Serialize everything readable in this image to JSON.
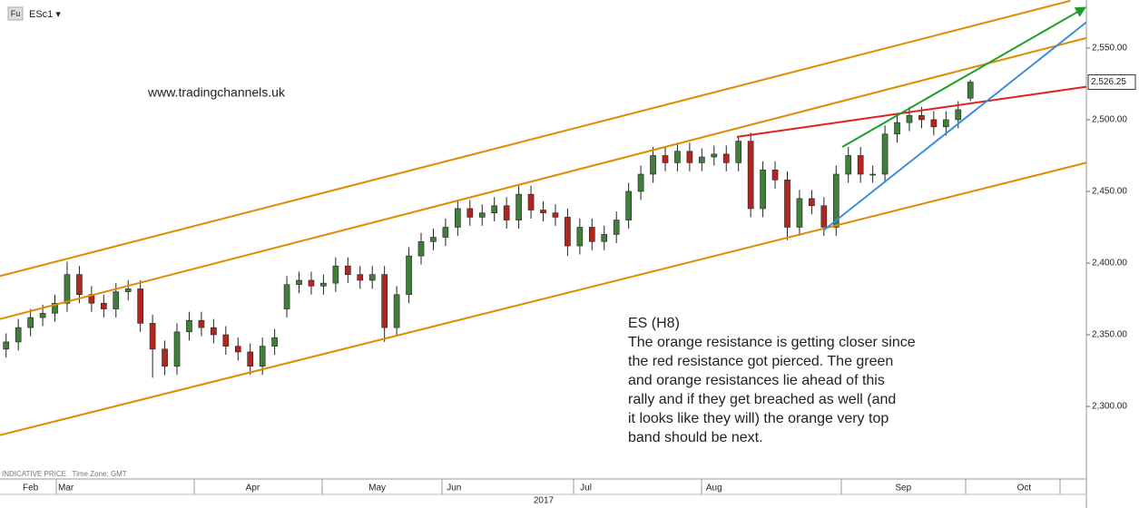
{
  "symbol_badge": "Fu",
  "symbol": "ESc1 ▾",
  "website": "www.tradingchannels.uk",
  "footer_note": "INDICATIVE PRICE   Time Zone: GMT",
  "annotation": [
    "ES (H8)",
    "The orange resistance is getting closer since",
    "the red resistance got pierced. The green",
    "and orange resistances lie ahead of this",
    "rally and if they get breached as well (and",
    "it looks like they will) the orange very top",
    "band should be next."
  ],
  "chart_data": {
    "type": "candlestick",
    "year_label": "2017",
    "xlim": [
      -0.5,
      88.5
    ],
    "xticks": [
      {
        "value": 2.0,
        "label": "Feb"
      },
      {
        "value": 4.9,
        "label": "Mar"
      },
      {
        "value": 20.2,
        "label": "Apr"
      },
      {
        "value": 30.4,
        "label": "May"
      },
      {
        "value": 36.7,
        "label": "Jun"
      },
      {
        "value": 47.5,
        "label": "Jul"
      },
      {
        "value": 58.0,
        "label": "Aug"
      },
      {
        "value": 73.5,
        "label": "Sep"
      },
      {
        "value": 83.4,
        "label": "Oct"
      }
    ],
    "ylim": [
      2249.4,
      2583.5
    ],
    "yticks": [
      {
        "value": 2300,
        "label": "2,300.00"
      },
      {
        "value": 2350,
        "label": "2,350.00"
      },
      {
        "value": 2400,
        "label": "2,400.00"
      },
      {
        "value": 2450,
        "label": "2,450.00"
      },
      {
        "value": 2500,
        "label": "2,500.00"
      },
      {
        "value": 2550,
        "label": "2,550.00"
      }
    ],
    "up_color": "#3f7f3a",
    "down_color": "#b3261e",
    "open": [
      2340,
      2345,
      2355,
      2362,
      2365,
      2372,
      2392,
      2378,
      2372,
      2368,
      2380,
      2382,
      2358,
      2340,
      2328,
      2352,
      2360,
      2355,
      2350,
      2342,
      2338,
      2328,
      2342,
      2368,
      2385,
      2388,
      2384,
      2386,
      2398,
      2392,
      2388,
      2392,
      2355,
      2378,
      2405,
      2415,
      2418,
      2425,
      2438,
      2432,
      2435,
      2440,
      2430,
      2448,
      2437,
      2435,
      2432,
      2412,
      2425,
      2415,
      2420,
      2430,
      2450,
      2462,
      2475,
      2470,
      2478,
      2470,
      2474,
      2476,
      2470,
      2485,
      2438,
      2465,
      2458,
      2425,
      2445,
      2440,
      2425,
      2462,
      2475,
      2462,
      2462,
      2490,
      2498,
      2503,
      2500,
      2495,
      2500,
      2515
    ],
    "high": [
      2351,
      2361,
      2368,
      2371,
      2378,
      2401,
      2398,
      2384,
      2378,
      2386,
      2388,
      2388,
      2364,
      2346,
      2358,
      2366,
      2366,
      2361,
      2356,
      2348,
      2344,
      2348,
      2354,
      2391,
      2394,
      2394,
      2392,
      2404,
      2404,
      2398,
      2398,
      2398,
      2384,
      2411,
      2421,
      2424,
      2431,
      2444,
      2444,
      2441,
      2446,
      2446,
      2454,
      2454,
      2443,
      2441,
      2438,
      2431,
      2431,
      2426,
      2436,
      2456,
      2468,
      2481,
      2481,
      2484,
      2484,
      2480,
      2482,
      2482,
      2488,
      2491,
      2471,
      2471,
      2464,
      2451,
      2451,
      2446,
      2468,
      2481,
      2481,
      2468,
      2496,
      2504,
      2509,
      2509,
      2506,
      2506,
      2513,
      2528
    ],
    "low": [
      2334,
      2339,
      2349,
      2356,
      2359,
      2366,
      2372,
      2366,
      2362,
      2362,
      2374,
      2352,
      2320,
      2322,
      2322,
      2346,
      2349,
      2344,
      2336,
      2332,
      2322,
      2322,
      2336,
      2362,
      2379,
      2378,
      2378,
      2380,
      2386,
      2382,
      2382,
      2345,
      2349,
      2372,
      2399,
      2409,
      2412,
      2419,
      2426,
      2426,
      2429,
      2424,
      2424,
      2431,
      2429,
      2426,
      2405,
      2406,
      2409,
      2409,
      2414,
      2424,
      2444,
      2456,
      2464,
      2464,
      2464,
      2464,
      2468,
      2464,
      2464,
      2432,
      2432,
      2452,
      2416,
      2419,
      2434,
      2419,
      2419,
      2456,
      2456,
      2456,
      2456,
      2484,
      2492,
      2494,
      2489,
      2489,
      2494,
      2513
    ],
    "close": [
      2345,
      2355,
      2362,
      2365,
      2372,
      2392,
      2378,
      2372,
      2368,
      2380,
      2382,
      2358,
      2340,
      2328,
      2352,
      2360,
      2355,
      2350,
      2342,
      2338,
      2328,
      2342,
      2348,
      2385,
      2388,
      2384,
      2386,
      2398,
      2392,
      2388,
      2392,
      2355,
      2378,
      2405,
      2415,
      2418,
      2425,
      2438,
      2432,
      2435,
      2440,
      2430,
      2448,
      2437,
      2435,
      2432,
      2412,
      2425,
      2415,
      2420,
      2430,
      2450,
      2462,
      2475,
      2470,
      2478,
      2470,
      2474,
      2476,
      2470,
      2485,
      2438,
      2465,
      2458,
      2425,
      2445,
      2440,
      2425,
      2462,
      2475,
      2462,
      2462,
      2490,
      2498,
      2503,
      2500,
      2495,
      2500,
      2507,
      2526.25
    ],
    "last_price": {
      "value": 2526.25,
      "label": "2,526.25"
    },
    "trendlines": [
      {
        "color": "#e08a00",
        "x": [
          -0.5,
          87.2
        ],
        "y": [
          2391,
          2583
        ]
      },
      {
        "color": "#e08a00",
        "x": [
          -0.5,
          88.5
        ],
        "y": [
          2361,
          2557
        ]
      },
      {
        "color": "#e08a00",
        "x": [
          -0.5,
          88.5
        ],
        "y": [
          2280,
          2470
        ]
      },
      {
        "color": "#e02020",
        "x": [
          59.87,
          88.5
        ],
        "y": [
          2488,
          2523
        ]
      },
      {
        "color": "#1e9e28",
        "x": [
          68.5,
          88.35
        ],
        "y": [
          2481,
          2578
        ]
      },
      {
        "color": "#3a8fd8",
        "x": [
          67.0,
          88.5
        ],
        "y": [
          2423,
          2568
        ]
      }
    ]
  }
}
